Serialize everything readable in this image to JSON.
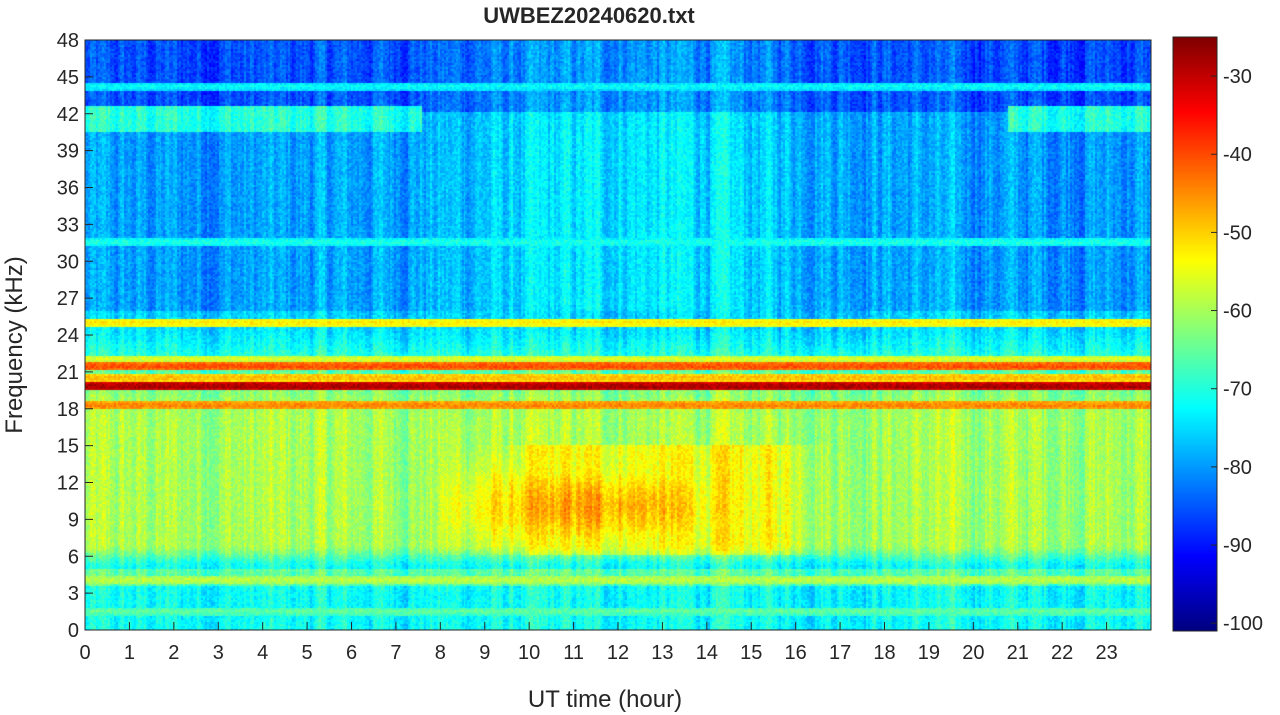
{
  "chart_data": {
    "type": "heatmap",
    "title": "UWBEZ20240620.txt",
    "xlabel": "UT time (hour)",
    "ylabel": "Frequency (kHz)",
    "xlim": [
      0,
      24
    ],
    "ylim": [
      0,
      48
    ],
    "x_ticks": [
      "0",
      "1",
      "2",
      "3",
      "4",
      "5",
      "6",
      "7",
      "8",
      "9",
      "10",
      "11",
      "12",
      "13",
      "14",
      "15",
      "16",
      "17",
      "18",
      "19",
      "20",
      "21",
      "22",
      "23"
    ],
    "y_ticks": [
      "0",
      "3",
      "6",
      "9",
      "12",
      "15",
      "18",
      "21",
      "24",
      "27",
      "30",
      "33",
      "36",
      "39",
      "42",
      "45",
      "48"
    ],
    "colorbar": {
      "colormap": "jet",
      "range": [
        -101,
        -25
      ],
      "ticks": [
        "-100",
        "-90",
        "-80",
        "-70",
        "-60",
        "-50",
        "-40",
        "-30"
      ]
    },
    "features": [
      {
        "type": "narrowband-line",
        "frequency_khz": 19.8,
        "level_db": -28
      },
      {
        "type": "narrowband-line",
        "frequency_khz": 21.4,
        "level_db": -40
      },
      {
        "type": "narrowband-line",
        "frequency_khz": 18.2,
        "level_db": -44
      },
      {
        "type": "narrowband-line",
        "frequency_khz": 20.5,
        "level_db": -48
      },
      {
        "type": "narrowband-line",
        "frequency_khz": 25.0,
        "level_db": -52
      },
      {
        "type": "narrowband-line",
        "frequency_khz": 22.0,
        "level_db": -56
      },
      {
        "type": "narrowband-line",
        "frequency_khz": 44.2,
        "level_db": -72
      },
      {
        "type": "narrowband-line",
        "frequency_khz": 31.5,
        "level_db": -70
      },
      {
        "type": "narrowband-line",
        "frequency_khz": 4.0,
        "level_db": -58
      },
      {
        "type": "narrowband-line",
        "frequency_khz": 1.5,
        "level_db": -65
      },
      {
        "type": "broadband-region",
        "time_hour": [
          9,
          17
        ],
        "frequency_khz": [
          6,
          15
        ],
        "peak_time_hour": 11.6,
        "peak_frequency_khz": 10,
        "level_db": -47
      },
      {
        "type": "background",
        "time_hour": [
          0,
          24
        ],
        "frequency_khz": [
          6,
          17
        ],
        "level_db": -60
      },
      {
        "type": "background",
        "time_hour": [
          0,
          24
        ],
        "frequency_khz": [
          26,
          48
        ],
        "level_db": -80
      }
    ]
  }
}
